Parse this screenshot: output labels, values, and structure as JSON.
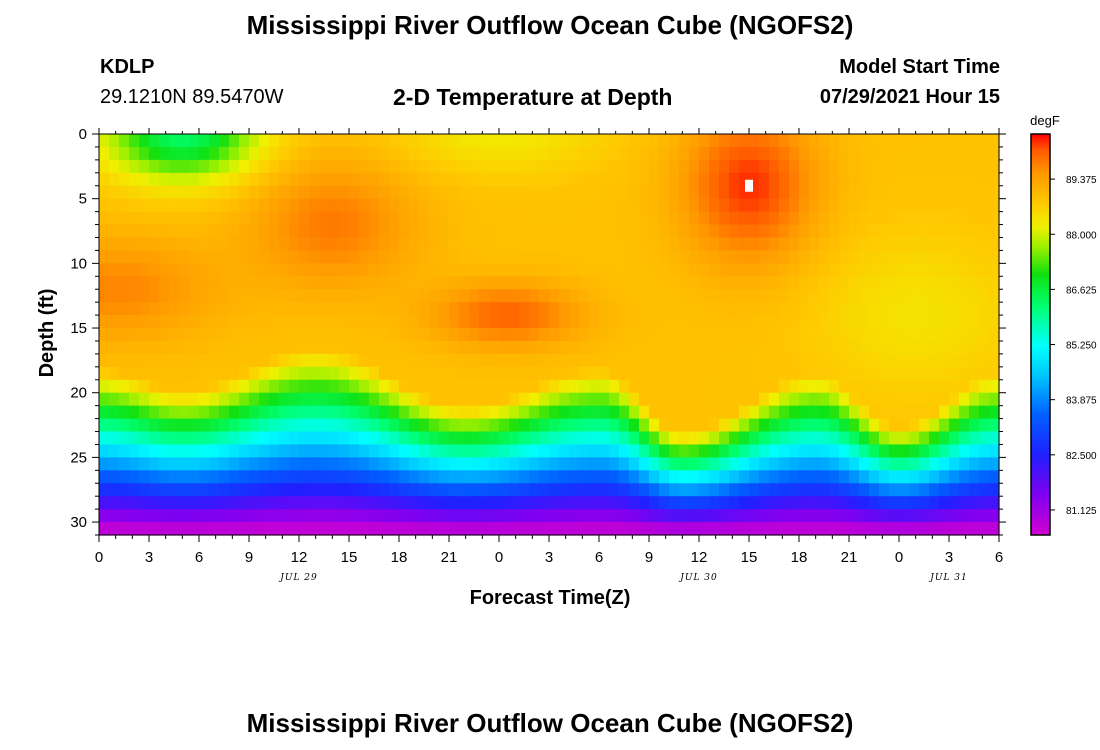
{
  "header": {
    "title": "Mississippi River Outflow Ocean Cube (NGOFS2)",
    "station": "KDLP",
    "coordinates": "29.1210N  89.5470W",
    "model_start_label": "Model Start Time",
    "model_start_value": "07/29/2021 Hour 15"
  },
  "footer": {
    "title": "Mississippi River Outflow Ocean Cube (NGOFS2)"
  },
  "chart_data": {
    "type": "heatmap",
    "title": "2-D Temperature at Depth",
    "xlabel": "Forecast Time(Z)",
    "ylabel": "Depth (ft)",
    "xlim": [
      0,
      54
    ],
    "ylim": [
      0,
      31
    ],
    "x_ticks": [
      0,
      3,
      6,
      9,
      12,
      15,
      18,
      21,
      24,
      27,
      30,
      33,
      36,
      39,
      42,
      45,
      48,
      51,
      54
    ],
    "x_tick_labels": [
      "0",
      "3",
      "6",
      "9",
      "12",
      "15",
      "18",
      "21",
      "0",
      "3",
      "6",
      "9",
      "12",
      "15",
      "18",
      "21",
      "0",
      "3",
      "6"
    ],
    "y_ticks": [
      0,
      5,
      10,
      15,
      20,
      25,
      30
    ],
    "y_tick_labels": [
      "0",
      "5",
      "10",
      "15",
      "20",
      "25",
      "30"
    ],
    "date_labels": [
      {
        "x": 12,
        "label": "JUL 29"
      },
      {
        "x": 36,
        "label": "JUL 30"
      },
      {
        "x": 51,
        "label": "JUL 31"
      }
    ],
    "colorbar": {
      "unit": "degF",
      "min": 80.5,
      "max": 90.5,
      "tick_values": [
        81.125,
        82.5,
        83.875,
        85.25,
        86.625,
        88.0,
        89.375
      ],
      "tick_labels": [
        "81.125",
        "82.500",
        "83.875",
        "85.250",
        "86.625",
        "88.000",
        "89.375"
      ],
      "stops": [
        [
          80.5,
          "#d000d0"
        ],
        [
          81.5,
          "#8000f0"
        ],
        [
          82.5,
          "#2020ff"
        ],
        [
          83.5,
          "#0060ff"
        ],
        [
          84.5,
          "#00c8ff"
        ],
        [
          85.2,
          "#00ffff"
        ],
        [
          86.2,
          "#00ff70"
        ],
        [
          87.0,
          "#10e010"
        ],
        [
          87.7,
          "#a0f000"
        ],
        [
          88.2,
          "#f0f000"
        ],
        [
          88.8,
          "#ffc800"
        ],
        [
          89.5,
          "#ff9a00"
        ],
        [
          90.1,
          "#ff5a00"
        ],
        [
          90.5,
          "#ff0000"
        ]
      ]
    },
    "model": {
      "description": "approximate temperature field (degF) by forecast hour and depth",
      "base_temp": 88.9,
      "thermocline_depth_peaks": [
        {
          "x": 0,
          "depth": 18.2
        },
        {
          "x": 5,
          "depth": 19.8
        },
        {
          "x": 13,
          "depth": 16.6
        },
        {
          "x": 22,
          "depth": 21.0
        },
        {
          "x": 30,
          "depth": 18.2
        },
        {
          "x": 35,
          "depth": 23.0
        },
        {
          "x": 43,
          "depth": 18.6
        },
        {
          "x": 48,
          "depth": 22.6
        },
        {
          "x": 54,
          "depth": 18.6
        }
      ],
      "warm_spots": [
        {
          "x": 39,
          "depth": 4,
          "amp": 1.4,
          "rx": 4,
          "ry": 6
        },
        {
          "x": 14,
          "depth": 7,
          "amp": 0.9,
          "rx": 5,
          "ry": 5
        },
        {
          "x": 24.5,
          "depth": 14,
          "amp": 1.1,
          "rx": 4.5,
          "ry": 2.5
        },
        {
          "x": 1,
          "depth": 12,
          "amp": 0.8,
          "rx": 6,
          "ry": 4
        }
      ],
      "cool_spots": [
        {
          "x": 5,
          "depth": 0,
          "amp": 2.6,
          "rx": 4.5,
          "ry": 3.5
        },
        {
          "x": 24,
          "depth": 0,
          "amp": 0.6,
          "rx": 6,
          "ry": 3
        },
        {
          "x": 49,
          "depth": 14,
          "amp": 0.5,
          "rx": 6,
          "ry": 6
        }
      ],
      "white_marker": {
        "x": 39,
        "depth": 4
      }
    }
  }
}
